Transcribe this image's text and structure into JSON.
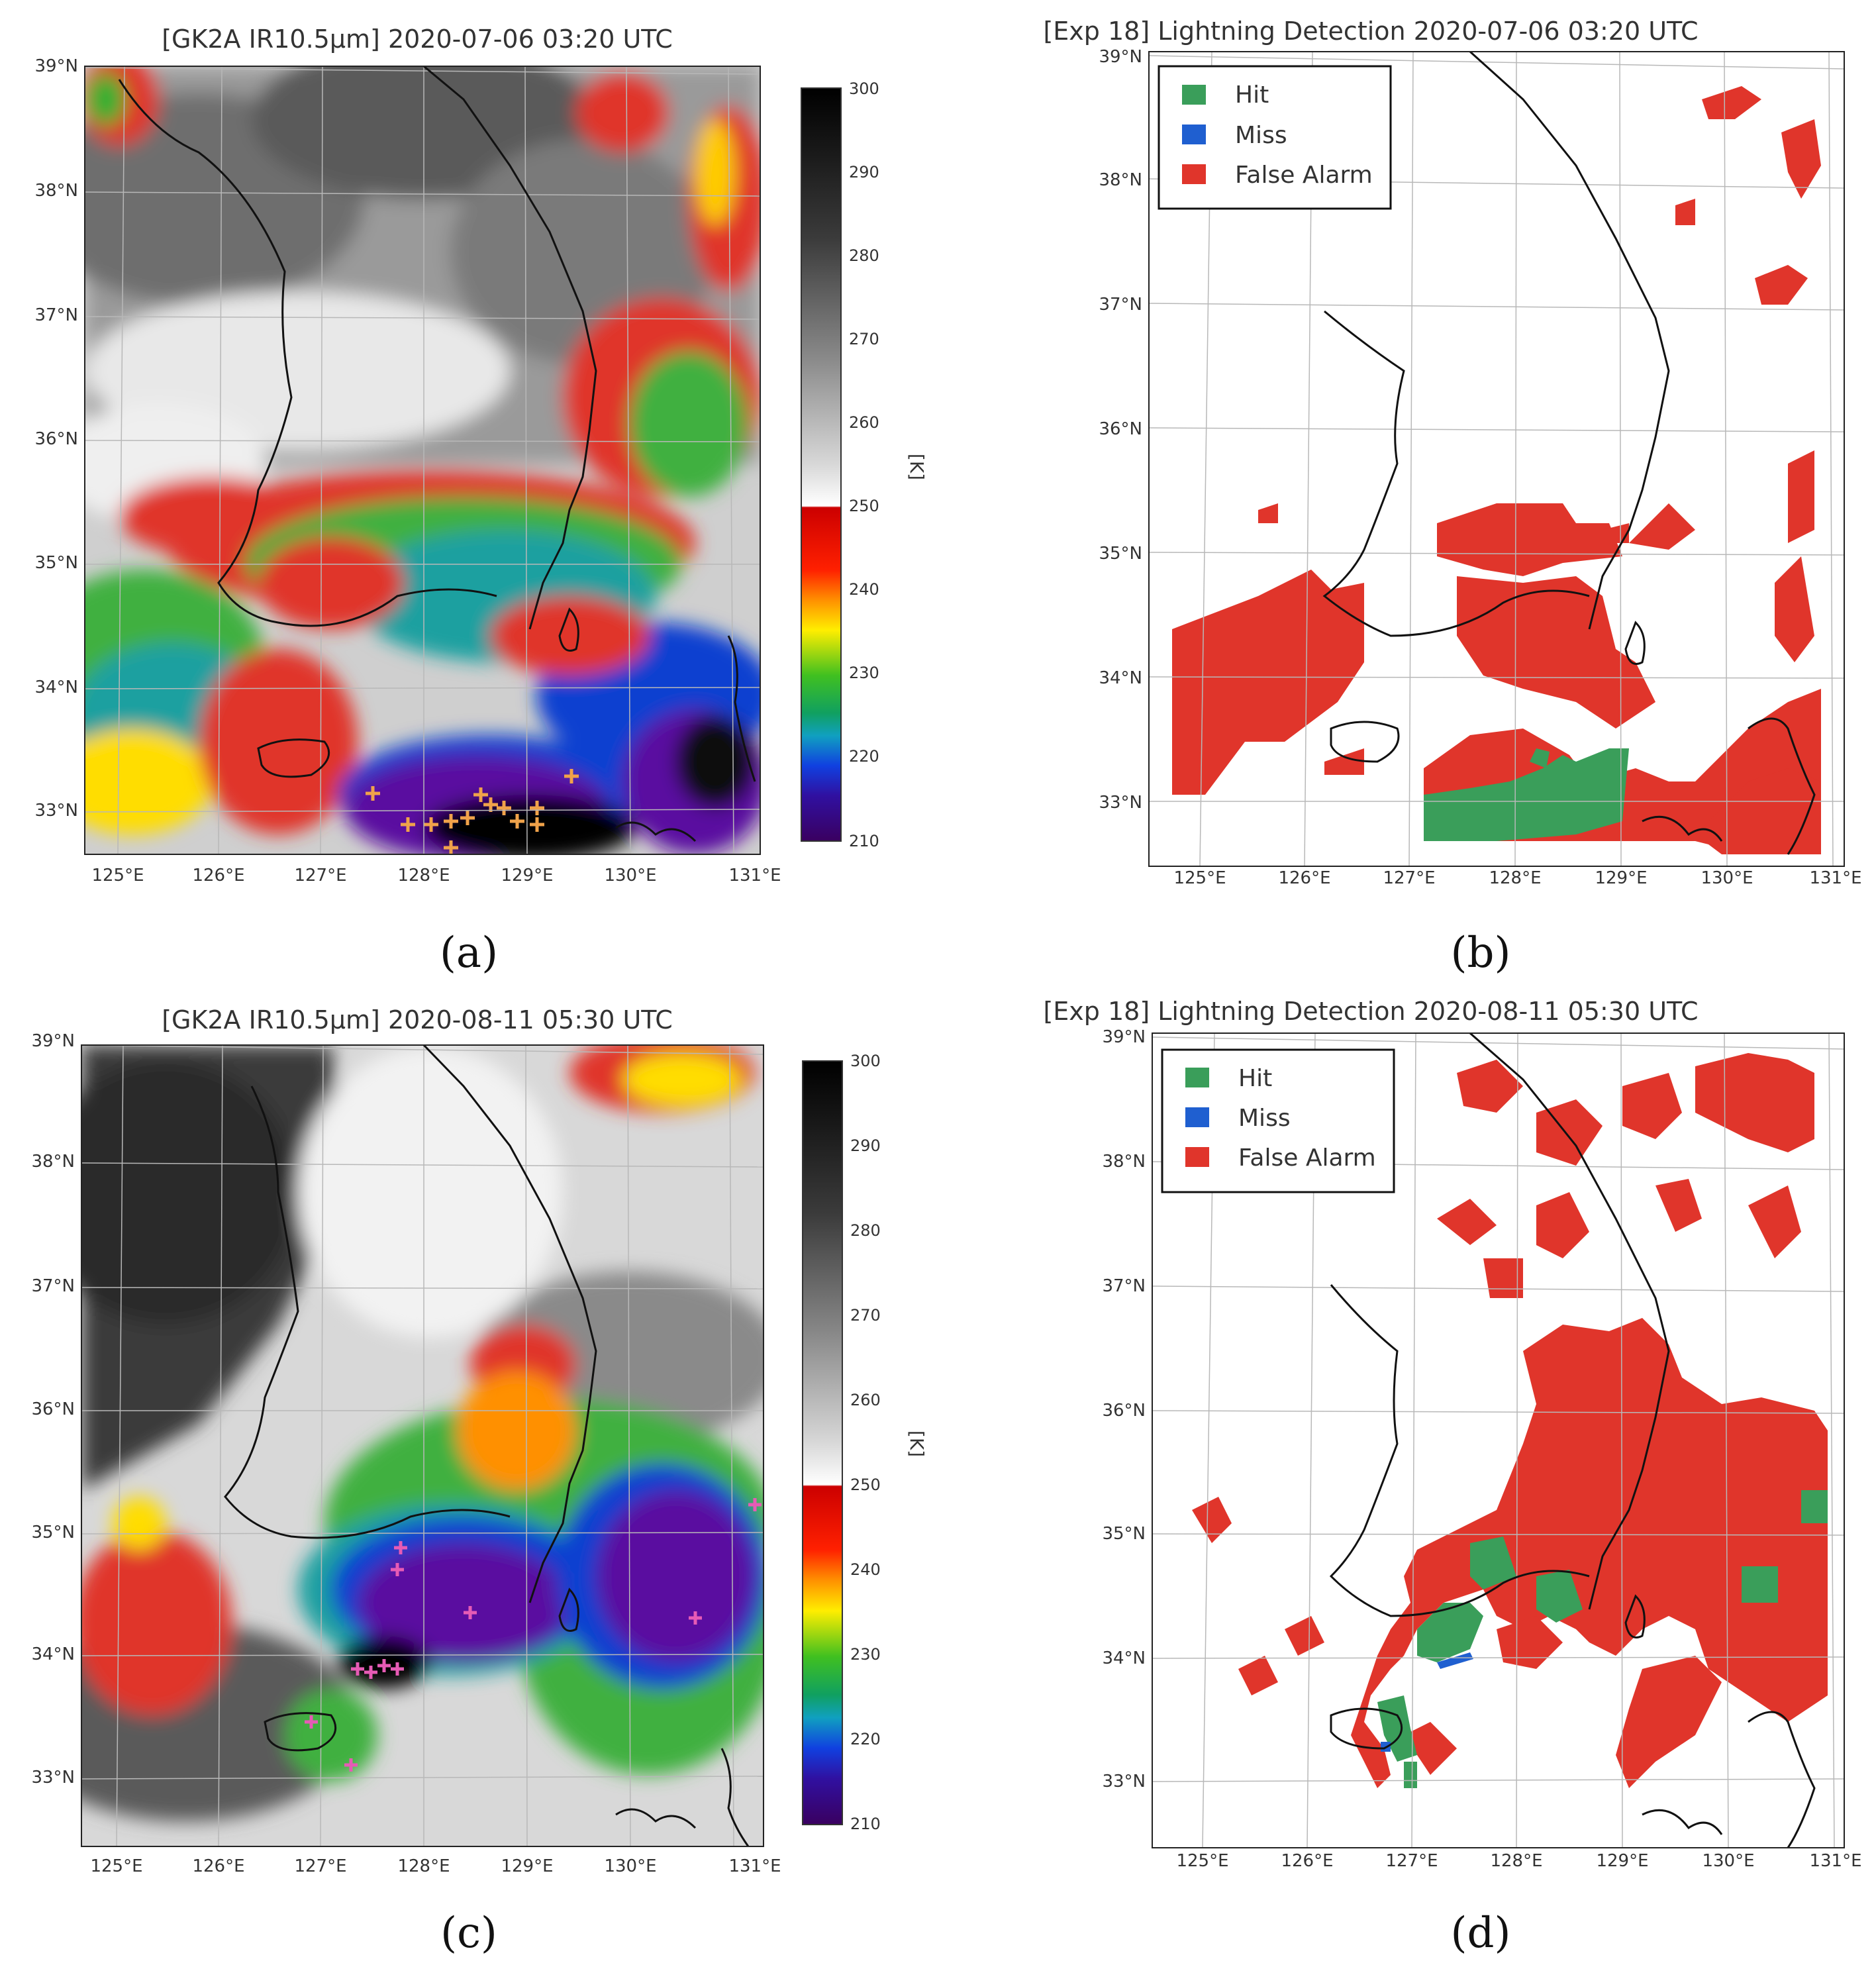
{
  "figure": {
    "panels": [
      {
        "id": "a",
        "kind": "ir",
        "title": "[GK2A IR10.5μm] 2020-07-06 03:20 UTC",
        "caption": "(a)",
        "lat_labels": [
          "39°N",
          "38°N",
          "37°N",
          "36°N",
          "35°N",
          "34°N",
          "33°N"
        ],
        "lon_labels": [
          "125°E",
          "126°E",
          "127°E",
          "128°E",
          "129°E",
          "130°E",
          "131°E"
        ],
        "colorbar": {
          "unit": "[K]",
          "ticks": [
            "300",
            "290",
            "280",
            "270",
            "260",
            "250",
            "240",
            "230",
            "220",
            "210"
          ]
        },
        "lightning_marker_color": "#f0a24a"
      },
      {
        "id": "b",
        "kind": "detection",
        "title": "[Exp 18] Lightning Detection 2020-07-06 03:20 UTC",
        "caption": "(b)",
        "lat_labels": [
          "39°N",
          "38°N",
          "37°N",
          "36°N",
          "35°N",
          "34°N",
          "33°N"
        ],
        "lon_labels": [
          "125°E",
          "126°E",
          "127°E",
          "128°E",
          "129°E",
          "130°E",
          "131°E"
        ],
        "legend": [
          {
            "label": "Hit",
            "color": "#3a9e5a"
          },
          {
            "label": "Miss",
            "color": "#1f5fd0"
          },
          {
            "label": "False Alarm",
            "color": "#e0352b"
          }
        ]
      },
      {
        "id": "c",
        "kind": "ir",
        "title": "[GK2A IR10.5μm] 2020-08-11 05:30 UTC",
        "caption": "(c)",
        "lat_labels": [
          "39°N",
          "38°N",
          "37°N",
          "36°N",
          "35°N",
          "34°N",
          "33°N"
        ],
        "lon_labels": [
          "125°E",
          "126°E",
          "127°E",
          "128°E",
          "129°E",
          "130°E",
          "131°E"
        ],
        "colorbar": {
          "unit": "[K]",
          "ticks": [
            "300",
            "290",
            "280",
            "270",
            "260",
            "250",
            "240",
            "230",
            "220",
            "210"
          ]
        },
        "lightning_marker_color": "#e65bb5"
      },
      {
        "id": "d",
        "kind": "detection",
        "title": "[Exp 18] Lightning Detection 2020-08-11 05:30 UTC",
        "caption": "(d)",
        "lat_labels": [
          "39°N",
          "38°N",
          "37°N",
          "36°N",
          "35°N",
          "34°N",
          "33°N"
        ],
        "lon_labels": [
          "125°E",
          "126°E",
          "127°E",
          "128°E",
          "129°E",
          "130°E",
          "131°E"
        ],
        "legend": [
          {
            "label": "Hit",
            "color": "#3a9e5a"
          },
          {
            "label": "Miss",
            "color": "#1f5fd0"
          },
          {
            "label": "False Alarm",
            "color": "#e0352b"
          }
        ]
      }
    ],
    "colors": {
      "coastline": "#111111",
      "gridline": "#b8b8b8",
      "colorbar_scale": [
        "#000000",
        "#3b3b3b",
        "#7a7a7a",
        "#b8b8b8",
        "#f2f2f2",
        "#cc0000",
        "#ff8c00",
        "#ffee00",
        "#20a020",
        "#10a0a0",
        "#1040d0",
        "#5010a0",
        "#2a0040"
      ]
    }
  }
}
